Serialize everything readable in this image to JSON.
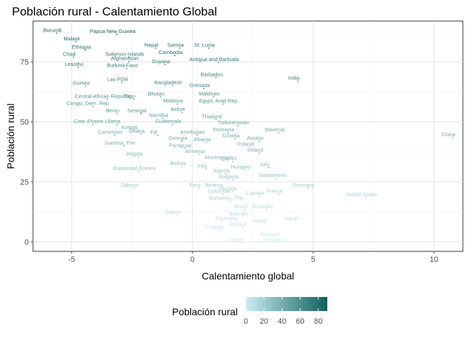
{
  "chart_data": {
    "type": "scatter",
    "title": "Población rural - Calentamiento Global",
    "xlabel": "Calentamiento global",
    "ylabel": "Población rural",
    "xlim": [
      -6.6,
      11.2
    ],
    "ylim": [
      -4,
      92
    ],
    "xticks": [
      -5,
      0,
      5,
      10
    ],
    "xtick_labels": [
      "-5",
      "0",
      "5",
      "10"
    ],
    "yticks": [
      0,
      25,
      50,
      75
    ],
    "ytick_labels": [
      "0",
      "25",
      "50",
      "75"
    ],
    "grid": true,
    "color_scale": {
      "low": "#c9eef2",
      "high": "#0f5f5c"
    },
    "legend": {
      "title": "Población rural",
      "position": "bottom",
      "range": [
        0,
        90
      ],
      "ticks": [
        0,
        20,
        40,
        60,
        80
      ],
      "tick_labels": [
        "0",
        "20",
        "40",
        "60",
        "80"
      ]
    },
    "points": [
      {
        "label": "Burundi",
        "x": -5.8,
        "y": 87.5
      },
      {
        "label": "Papua New Guinea",
        "x": -3.3,
        "y": 87.0
      },
      {
        "label": "Malawi",
        "x": -5.0,
        "y": 84.0
      },
      {
        "label": "Nepal",
        "x": -1.7,
        "y": 81.3
      },
      {
        "label": "Samoa",
        "x": -0.7,
        "y": 81.3
      },
      {
        "label": "St. Lucia",
        "x": 0.5,
        "y": 81.3
      },
      {
        "label": "Ethiopia",
        "x": -4.6,
        "y": 80.5
      },
      {
        "label": "Chad",
        "x": -5.1,
        "y": 77.5
      },
      {
        "label": "Solomon Islands",
        "x": -2.8,
        "y": 77.5
      },
      {
        "label": "Cambodia",
        "x": -0.9,
        "y": 78.2
      },
      {
        "label": "Afghanistan",
        "x": -2.8,
        "y": 75.7
      },
      {
        "label": "Antigua and Barbuda",
        "x": 0.9,
        "y": 75.3
      },
      {
        "label": "Guyana",
        "x": -1.3,
        "y": 74.5
      },
      {
        "label": "Lesotho",
        "x": -4.9,
        "y": 73.3
      },
      {
        "label": "Burkina Faso",
        "x": -2.9,
        "y": 72.8
      },
      {
        "label": "Barbados",
        "x": 0.8,
        "y": 69.0
      },
      {
        "label": "India",
        "x": 4.2,
        "y": 67.5
      },
      {
        "label": "Lao PDR",
        "x": -3.1,
        "y": 67.0
      },
      {
        "label": "Bangladesh",
        "x": -1.0,
        "y": 65.7
      },
      {
        "label": "Guinea",
        "x": -4.6,
        "y": 65.5
      },
      {
        "label": "Grenada",
        "x": 0.3,
        "y": 64.5
      },
      {
        "label": "Maldives",
        "x": 0.7,
        "y": 61.0
      },
      {
        "label": "Bhutan",
        "x": -1.5,
        "y": 61.0
      },
      {
        "label": "Central African Republic",
        "x": -3.7,
        "y": 60.0
      },
      {
        "label": "Togo",
        "x": -2.6,
        "y": 60.0
      },
      {
        "label": "Moldova",
        "x": -0.8,
        "y": 58.0
      },
      {
        "label": "Egypt, Arab Rep.",
        "x": 1.1,
        "y": 58.0
      },
      {
        "label": "Congo, Dem. Rep.",
        "x": -4.3,
        "y": 57.0
      },
      {
        "label": "Benin",
        "x": -3.3,
        "y": 54.0
      },
      {
        "label": "Senegal",
        "x": -2.3,
        "y": 54.0
      },
      {
        "label": "Belize",
        "x": -0.6,
        "y": 54.5
      },
      {
        "label": "Namibia",
        "x": -1.4,
        "y": 52.0
      },
      {
        "label": "Thailand",
        "x": 0.8,
        "y": 51.5
      },
      {
        "label": "Cote d'Ivoire",
        "x": -4.3,
        "y": 49.5
      },
      {
        "label": "Liberia",
        "x": -3.3,
        "y": 49.5
      },
      {
        "label": "Guatemala",
        "x": -1.0,
        "y": 49.5
      },
      {
        "label": "Turkmenistan",
        "x": 1.7,
        "y": 49.0
      },
      {
        "label": "Kiribati",
        "x": -2.6,
        "y": 47.0
      },
      {
        "label": "Romania",
        "x": 1.3,
        "y": 46.0
      },
      {
        "label": "Slovenia",
        "x": 3.4,
        "y": 46.0
      },
      {
        "label": "Cameroon",
        "x": -3.4,
        "y": 45.0
      },
      {
        "label": "Ghana",
        "x": -2.3,
        "y": 45.5
      },
      {
        "label": "Fiji",
        "x": -1.6,
        "y": 45.0
      },
      {
        "label": "Azerbaijan",
        "x": 0.0,
        "y": 45.0
      },
      {
        "label": "Croatia",
        "x": 1.6,
        "y": 43.5
      },
      {
        "label": "China",
        "x": 10.6,
        "y": 44.0
      },
      {
        "label": "Georgia",
        "x": -0.6,
        "y": 42.5
      },
      {
        "label": "Albania",
        "x": 0.4,
        "y": 42.0
      },
      {
        "label": "Austria",
        "x": 2.6,
        "y": 42.5
      },
      {
        "label": "Gambia, The",
        "x": -3.0,
        "y": 40.5
      },
      {
        "label": "Poland",
        "x": 2.2,
        "y": 40.0
      },
      {
        "label": "Paraguay",
        "x": -0.5,
        "y": 39.5
      },
      {
        "label": "Ireland",
        "x": 2.6,
        "y": 37.5
      },
      {
        "label": "Armenia",
        "x": 0.1,
        "y": 37.0
      },
      {
        "label": "Angola",
        "x": -2.4,
        "y": 36.0
      },
      {
        "label": "Montenegro",
        "x": 1.1,
        "y": 34.5
      },
      {
        "label": "Cyprus",
        "x": 1.5,
        "y": 34.0
      },
      {
        "label": "Bolivia",
        "x": -0.6,
        "y": 32.0
      },
      {
        "label": "Italy",
        "x": 3.0,
        "y": 31.5
      },
      {
        "label": "Hungary",
        "x": 2.0,
        "y": 30.5
      },
      {
        "label": "Iraq",
        "x": 0.4,
        "y": 31.0
      },
      {
        "label": "Equatorial Guinea",
        "x": -2.4,
        "y": 30.0
      },
      {
        "label": "Nigeria",
        "x": 1.2,
        "y": 29.0
      },
      {
        "label": "Switzerland",
        "x": 3.3,
        "y": 27.0
      },
      {
        "label": "Bulgaria",
        "x": 1.5,
        "y": 26.5
      },
      {
        "label": "Djibouti",
        "x": -2.6,
        "y": 23.0
      },
      {
        "label": "Peru",
        "x": 0.1,
        "y": 23.0
      },
      {
        "label": "Belarus",
        "x": 0.9,
        "y": 23.0
      },
      {
        "label": "Germany",
        "x": 4.6,
        "y": 23.0
      },
      {
        "label": "Russia",
        "x": 1.5,
        "y": 21.5
      },
      {
        "label": "Colombia",
        "x": 1.1,
        "y": 20.5
      },
      {
        "label": "France",
        "x": 3.4,
        "y": 20.5
      },
      {
        "label": "Canada",
        "x": 2.6,
        "y": 19.5
      },
      {
        "label": "United States",
        "x": 7.0,
        "y": 19.0
      },
      {
        "label": "Bahamas, The",
        "x": 1.4,
        "y": 17.5
      },
      {
        "label": "Brazil",
        "x": 2.0,
        "y": 14.0
      },
      {
        "label": "Australia",
        "x": 2.9,
        "y": 14.0
      },
      {
        "label": "Gabon",
        "x": -0.8,
        "y": 11.5
      },
      {
        "label": "Bahrain",
        "x": 1.9,
        "y": 11.0
      },
      {
        "label": "Argentina",
        "x": 1.4,
        "y": 9.0
      },
      {
        "label": "Israel",
        "x": 2.8,
        "y": 8.0
      },
      {
        "label": "Japan",
        "x": 4.1,
        "y": 9.0
      },
      {
        "label": "Iceland",
        "x": 1.9,
        "y": 6.5
      },
      {
        "label": "Uruguay",
        "x": 0.9,
        "y": 5.5
      },
      {
        "label": "Belgium",
        "x": 3.2,
        "y": 2.5
      },
      {
        "label": "Kuwait",
        "x": 1.8,
        "y": 0.2
      },
      {
        "label": "Singapore",
        "x": 3.4,
        "y": 0.2
      }
    ]
  }
}
